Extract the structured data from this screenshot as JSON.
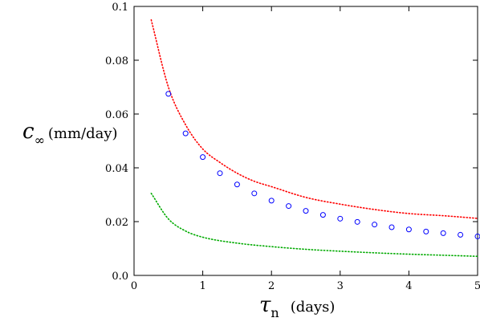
{
  "chart_data": {
    "type": "scatter",
    "xlabel": {
      "symbol": "τ",
      "sub": "n",
      "unit": "(days)"
    },
    "ylabel": {
      "symbol": "c",
      "sub": "∞",
      "unit": "(mm/day)"
    },
    "xlim": [
      0,
      5
    ],
    "ylim": [
      0,
      0.1
    ],
    "xticks": [
      "0",
      "1",
      "2",
      "3",
      "4",
      "5"
    ],
    "yticks": [
      "0.0",
      "0.02",
      "0.04",
      "0.06",
      "0.08",
      "0.1"
    ],
    "grid": false,
    "series": [
      {
        "style": "dotted-line",
        "color": "#ff0000",
        "x": [
          0.25,
          0.5,
          0.75,
          1.0,
          1.25,
          1.5,
          1.75,
          2.0,
          2.5,
          3.0,
          3.5,
          4.0,
          4.5,
          5.0
        ],
        "y": [
          0.095,
          0.07,
          0.056,
          0.047,
          0.042,
          0.038,
          0.035,
          0.033,
          0.029,
          0.0265,
          0.0245,
          0.023,
          0.0222,
          0.0212
        ]
      },
      {
        "style": "markers",
        "color": "#0000ff",
        "x": [
          0.5,
          0.75,
          1.0,
          1.25,
          1.5,
          1.75,
          2.0,
          2.25,
          2.5,
          2.75,
          3.0,
          3.25,
          3.5,
          3.75,
          4.0,
          4.25,
          4.5,
          4.75,
          5.0
        ],
        "y": [
          0.0675,
          0.0528,
          0.044,
          0.038,
          0.0338,
          0.0305,
          0.0278,
          0.0258,
          0.024,
          0.0225,
          0.0211,
          0.0199,
          0.0189,
          0.0179,
          0.0171,
          0.0163,
          0.0157,
          0.0151,
          0.0145
        ]
      },
      {
        "style": "dotted-line",
        "color": "#00aa00",
        "x": [
          0.25,
          0.5,
          0.75,
          1.0,
          1.5,
          2.0,
          2.5,
          3.0,
          3.5,
          4.0,
          4.5,
          5.0
        ],
        "y": [
          0.0305,
          0.021,
          0.0165,
          0.0142,
          0.012,
          0.0107,
          0.0097,
          0.009,
          0.0084,
          0.0079,
          0.0075,
          0.0071
        ]
      }
    ]
  }
}
